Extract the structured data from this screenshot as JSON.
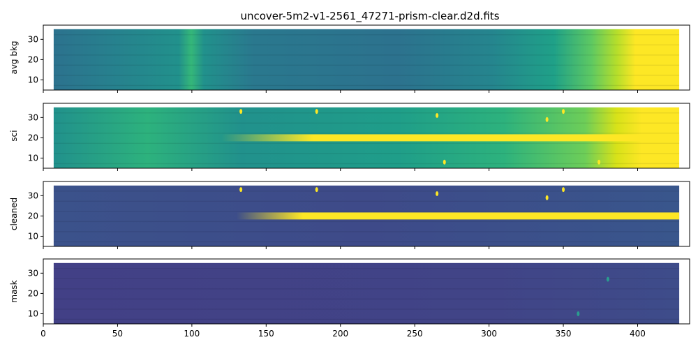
{
  "figure": {
    "title": "uncover-5m2-v1-2561_47271-prism-clear.d2d.fits"
  },
  "chart_data": {
    "type": "heatmap",
    "colormap": "viridis",
    "title": "uncover-5m2-v1-2561_47271-prism-clear.d2d.fits",
    "xlim": [
      0,
      435
    ],
    "x_ticks": [
      0,
      50,
      100,
      150,
      200,
      250,
      300,
      350,
      400
    ],
    "data_extent": {
      "x": [
        7,
        428
      ],
      "y": [
        5,
        35
      ]
    },
    "panels": [
      {
        "ylabel": "avg bkg",
        "ylim": [
          5,
          37
        ],
        "y_ticks": [
          10,
          20,
          30
        ],
        "trace": false,
        "background_trend": "low on the left, brighter near x=85-100, fading mid-range and saturating (yellow) beyond x=390"
      },
      {
        "ylabel": "sci",
        "ylim": [
          5,
          37
        ],
        "y_ticks": [
          10,
          20,
          30
        ],
        "trace": true,
        "trace_y": 20,
        "trace_start_x": 120,
        "features": [
          {
            "x": 133,
            "y": 33
          },
          {
            "x": 184,
            "y": 33
          },
          {
            "x": 265,
            "y": 31
          },
          {
            "x": 270,
            "y": 8
          },
          {
            "x": 339,
            "y": 29
          },
          {
            "x": 350,
            "y": 33
          },
          {
            "x": 374,
            "y": 8
          }
        ]
      },
      {
        "ylabel": "cleaned",
        "ylim": [
          5,
          37
        ],
        "y_ticks": [
          10,
          20,
          30
        ],
        "trace": true,
        "trace_y": 20,
        "trace_start_x": 130,
        "features": [
          {
            "x": 133,
            "y": 33
          },
          {
            "x": 184,
            "y": 33
          },
          {
            "x": 265,
            "y": 31
          },
          {
            "x": 339,
            "y": 29
          },
          {
            "x": 350,
            "y": 33
          }
        ]
      },
      {
        "ylabel": "mask",
        "ylim": [
          5,
          37
        ],
        "y_ticks": [
          10,
          20,
          30
        ],
        "trace": false,
        "features": [
          {
            "x": 360,
            "y": 10
          },
          {
            "x": 380,
            "y": 27
          }
        ]
      }
    ]
  }
}
